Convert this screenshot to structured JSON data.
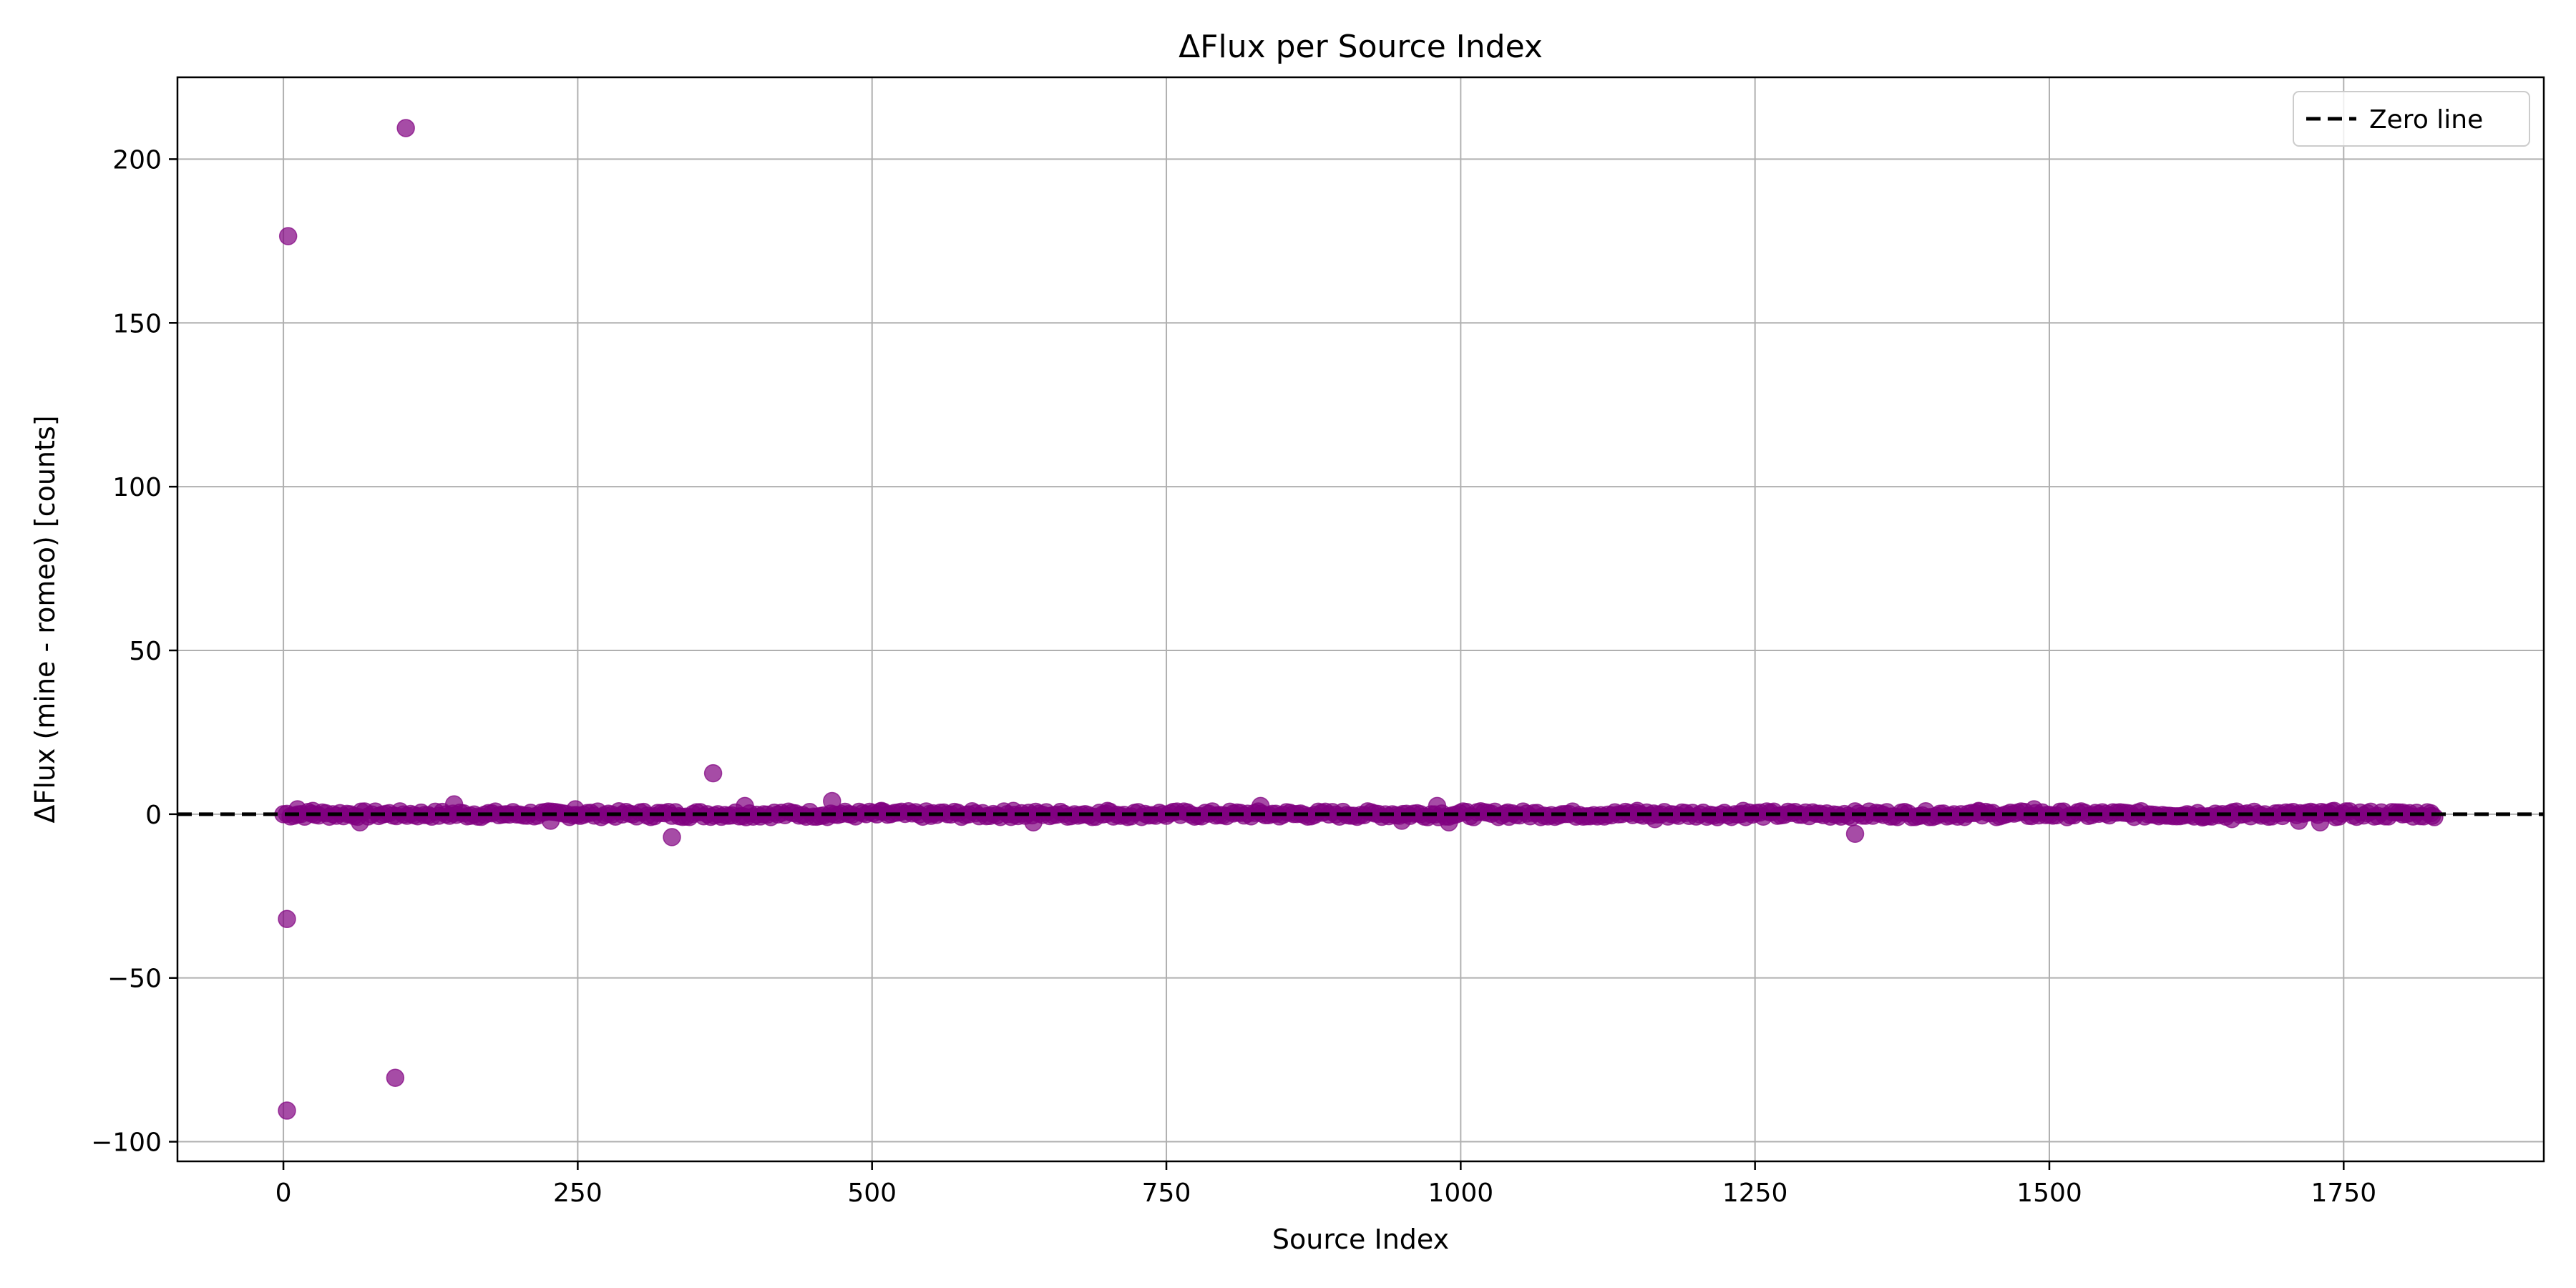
{
  "chart_data": {
    "type": "scatter",
    "title": "ΔFlux per Source Index",
    "xlabel": "Source Index",
    "ylabel": "ΔFlux (mine - romeo) [counts]",
    "xlim": [
      -90,
      1920
    ],
    "ylim": [
      -106,
      225
    ],
    "x_ticks": [
      0,
      250,
      500,
      750,
      1000,
      1250,
      1500,
      1750
    ],
    "y_ticks": [
      -100,
      -50,
      0,
      50,
      100,
      150,
      200
    ],
    "y_tick_labels": [
      "−100",
      "−50",
      "0",
      "50",
      "100",
      "150",
      "200"
    ],
    "grid": true,
    "legend": {
      "position": "top-right",
      "entries": [
        {
          "label": "Zero line",
          "style": "dashed",
          "color": "#000000"
        }
      ]
    },
    "reference_line": {
      "y": 0,
      "label": "Zero line",
      "style": "dashed",
      "color": "#000000"
    },
    "marker_color": "#800080",
    "marker_alpha": 0.7,
    "series": [
      {
        "points": [
          [
            4,
            176.5
          ],
          [
            3,
            -32
          ],
          [
            3,
            -90.5
          ],
          [
            95,
            -80.5
          ],
          [
            104,
            209.5
          ],
          [
            145,
            3
          ],
          [
            227,
            -2
          ],
          [
            248,
            1.5
          ],
          [
            330,
            -7
          ],
          [
            365,
            12.5
          ],
          [
            392,
            2.5
          ],
          [
            466,
            4
          ],
          [
            508,
            1
          ],
          [
            65,
            -2.5
          ],
          [
            12,
            1.5
          ],
          [
            25,
            1
          ],
          [
            550,
            -0.5
          ],
          [
            620,
            1
          ],
          [
            637,
            -2.5
          ],
          [
            700,
            1
          ],
          [
            830,
            2.5
          ],
          [
            950,
            -2
          ],
          [
            980,
            2.5
          ],
          [
            990,
            -2.5
          ],
          [
            1040,
            0.5
          ],
          [
            1150,
            1
          ],
          [
            1165,
            -1.5
          ],
          [
            1240,
            1
          ],
          [
            1335,
            -6
          ],
          [
            1440,
            1
          ],
          [
            1487,
            1.5
          ],
          [
            1630,
            -1
          ],
          [
            1655,
            -1.5
          ],
          [
            1712,
            -2
          ],
          [
            1730,
            -2.5
          ],
          [
            1742,
            1
          ],
          [
            1800,
            0.5
          ],
          [
            1825,
            -0.5
          ]
        ],
        "dense_band": {
          "x_from": 0,
          "x_to": 1828,
          "y_center": 0,
          "y_half_width": 0.9
        }
      }
    ]
  }
}
